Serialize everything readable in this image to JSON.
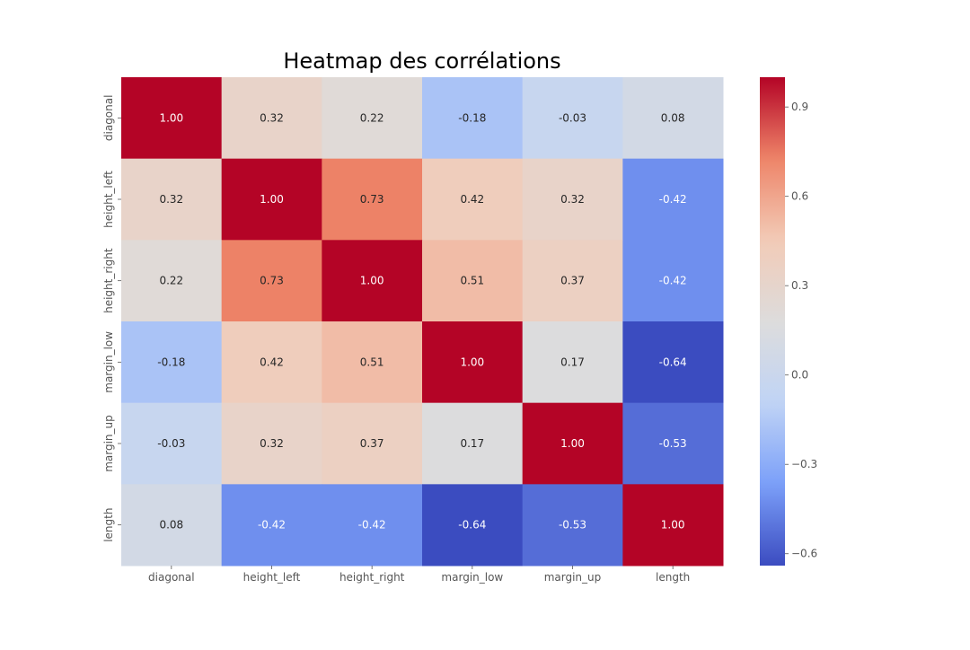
{
  "chart_data": {
    "type": "heatmap",
    "title": "Heatmap des corrélations",
    "x_labels": [
      "diagonal",
      "height_left",
      "height_right",
      "margin_low",
      "margin_up",
      "length"
    ],
    "y_labels": [
      "diagonal",
      "height_left",
      "height_right",
      "margin_low",
      "margin_up",
      "length"
    ],
    "values": [
      [
        1.0,
        0.32,
        0.22,
        -0.18,
        -0.03,
        0.08
      ],
      [
        0.32,
        1.0,
        0.73,
        0.42,
        0.32,
        -0.42
      ],
      [
        0.22,
        0.73,
        1.0,
        0.51,
        0.37,
        -0.42
      ],
      [
        -0.18,
        0.42,
        0.51,
        1.0,
        0.17,
        -0.64
      ],
      [
        -0.03,
        0.32,
        0.37,
        0.17,
        1.0,
        -0.53
      ],
      [
        0.08,
        -0.42,
        -0.42,
        -0.64,
        -0.53,
        1.0
      ]
    ],
    "annotation_format": "0.00",
    "colormap": "coolwarm",
    "colormap_stops": [
      "#3b4cc0",
      "#7b9ff9",
      "#c0d4f5",
      "#dddcdc",
      "#f2cbb7",
      "#ee8468",
      "#b40426"
    ],
    "vmin": -0.64,
    "vmax": 1.0,
    "colorbar": {
      "ticks": [
        0.9,
        0.6,
        0.3,
        0.0,
        -0.3,
        -0.6
      ],
      "tick_labels": [
        "0.9",
        "0.6",
        "0.3",
        "0.0",
        "−0.3",
        "−0.6"
      ]
    },
    "grid": false,
    "legend": "colorbar-right"
  }
}
